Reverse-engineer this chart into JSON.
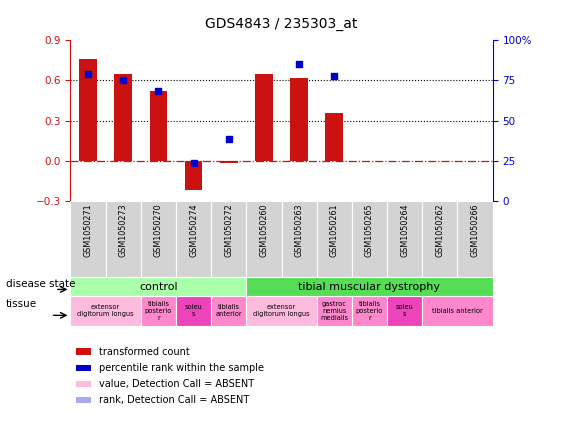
{
  "title": "GDS4843 / 235303_at",
  "samples": [
    "GSM1050271",
    "GSM1050273",
    "GSM1050270",
    "GSM1050274",
    "GSM1050272",
    "GSM1050260",
    "GSM1050263",
    "GSM1050261",
    "GSM1050265",
    "GSM1050264",
    "GSM1050262",
    "GSM1050266"
  ],
  "bar_values": [
    0.76,
    0.65,
    0.52,
    -0.22,
    -0.02,
    0.65,
    0.62,
    0.36,
    null,
    null,
    null,
    null
  ],
  "dot_values": [
    0.65,
    0.6,
    0.52,
    -0.02,
    0.16,
    null,
    0.72,
    0.63,
    null,
    null,
    null,
    null
  ],
  "bar_color": "#cc1111",
  "dot_color": "#0000cc",
  "ylim_left": [
    -0.3,
    0.9
  ],
  "ylim_right": [
    0,
    100
  ],
  "right_ticks": [
    0,
    25,
    50,
    75,
    100
  ],
  "right_tick_labels": [
    "0",
    "25",
    "50",
    "75",
    "100%"
  ],
  "left_ticks": [
    -0.3,
    0.0,
    0.3,
    0.6,
    0.9
  ],
  "hline_y_left": [
    0.3,
    0.6
  ],
  "zero_line_color": "#cc1111",
  "disease_state_control_label": "control",
  "disease_state_disease_label": "tibial muscular dystrophy",
  "disease_state_control_color": "#aaffaa",
  "disease_state_disease_color": "#55dd55",
  "tissue_blocks": [
    {
      "cols": [
        0,
        1
      ],
      "label": "extensor\ndigitorum longus",
      "color": "#ffbbdd"
    },
    {
      "cols": [
        2
      ],
      "label": "tibialis\nposterio\nr",
      "color": "#ff88cc"
    },
    {
      "cols": [
        3
      ],
      "label": "soleu\ns",
      "color": "#ee44bb"
    },
    {
      "cols": [
        4
      ],
      "label": "tibialis\nanterior",
      "color": "#ff88cc"
    },
    {
      "cols": [
        5,
        6
      ],
      "label": "extensor\ndigitorum longus",
      "color": "#ffbbdd"
    },
    {
      "cols": [
        7
      ],
      "label": "gastroc\nnemius\nmedialis",
      "color": "#ff88cc"
    },
    {
      "cols": [
        8
      ],
      "label": "tibialis\nposterio\nr",
      "color": "#ff88cc"
    },
    {
      "cols": [
        9
      ],
      "label": "soleu\ns",
      "color": "#ee44bb"
    },
    {
      "cols": [
        10,
        11
      ],
      "label": "tibialis anterior",
      "color": "#ff88cc"
    }
  ],
  "legend_items": [
    {
      "label": "transformed count",
      "color": "#cc1111"
    },
    {
      "label": "percentile rank within the sample",
      "color": "#0000cc"
    },
    {
      "label": "value, Detection Call = ABSENT",
      "color": "#ffbbdd"
    },
    {
      "label": "rank, Detection Call = ABSENT",
      "color": "#aaaaee"
    }
  ],
  "bar_width": 0.5,
  "dot_size": 25
}
